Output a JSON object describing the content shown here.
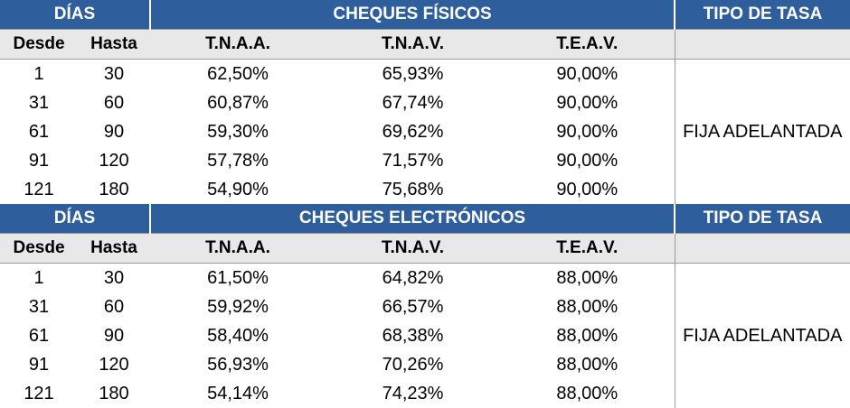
{
  "sections": [
    {
      "dias_label": "DÍAS",
      "title": "CHEQUES FÍSICOS",
      "tipo_header": "TIPO DE TASA",
      "col_desde": "Desde",
      "col_hasta": "Hasta",
      "col_tnaa": "T.N.A.A.",
      "col_tnav": "T.N.A.V.",
      "col_teav": "T.E.A.V.",
      "tipo_value": "FIJA ADELANTADA",
      "rows": [
        {
          "desde": "1",
          "hasta": "30",
          "tnaa": "62,50%",
          "tnav": "65,93%",
          "teav": "90,00%"
        },
        {
          "desde": "31",
          "hasta": "60",
          "tnaa": "60,87%",
          "tnav": "67,74%",
          "teav": "90,00%"
        },
        {
          "desde": "61",
          "hasta": "90",
          "tnaa": "59,30%",
          "tnav": "69,62%",
          "teav": "90,00%"
        },
        {
          "desde": "91",
          "hasta": "120",
          "tnaa": "57,78%",
          "tnav": "71,57%",
          "teav": "90,00%"
        },
        {
          "desde": "121",
          "hasta": "180",
          "tnaa": "54,90%",
          "tnav": "75,68%",
          "teav": "90,00%"
        }
      ]
    },
    {
      "dias_label": "DÍAS",
      "title": "CHEQUES ELECTRÓNICOS",
      "tipo_header": "TIPO DE TASA",
      "col_desde": "Desde",
      "col_hasta": "Hasta",
      "col_tnaa": "T.N.A.A.",
      "col_tnav": "T.N.A.V.",
      "col_teav": "T.E.A.V.",
      "tipo_value": "FIJA ADELANTADA",
      "rows": [
        {
          "desde": "1",
          "hasta": "30",
          "tnaa": "61,50%",
          "tnav": "64,82%",
          "teav": "88,00%"
        },
        {
          "desde": "31",
          "hasta": "60",
          "tnaa": "59,92%",
          "tnav": "66,57%",
          "teav": "88,00%"
        },
        {
          "desde": "61",
          "hasta": "90",
          "tnaa": "58,40%",
          "tnav": "68,38%",
          "teav": "88,00%"
        },
        {
          "desde": "91",
          "hasta": "120",
          "tnaa": "56,93%",
          "tnav": "70,26%",
          "teav": "88,00%"
        },
        {
          "desde": "121",
          "hasta": "180",
          "tnaa": "54,14%",
          "tnav": "74,23%",
          "teav": "88,00%"
        }
      ]
    }
  ],
  "colors": {
    "header_bg": "#2e5e9c",
    "header_text": "#ffffff",
    "subheader_bg": "#e8e8e8"
  }
}
